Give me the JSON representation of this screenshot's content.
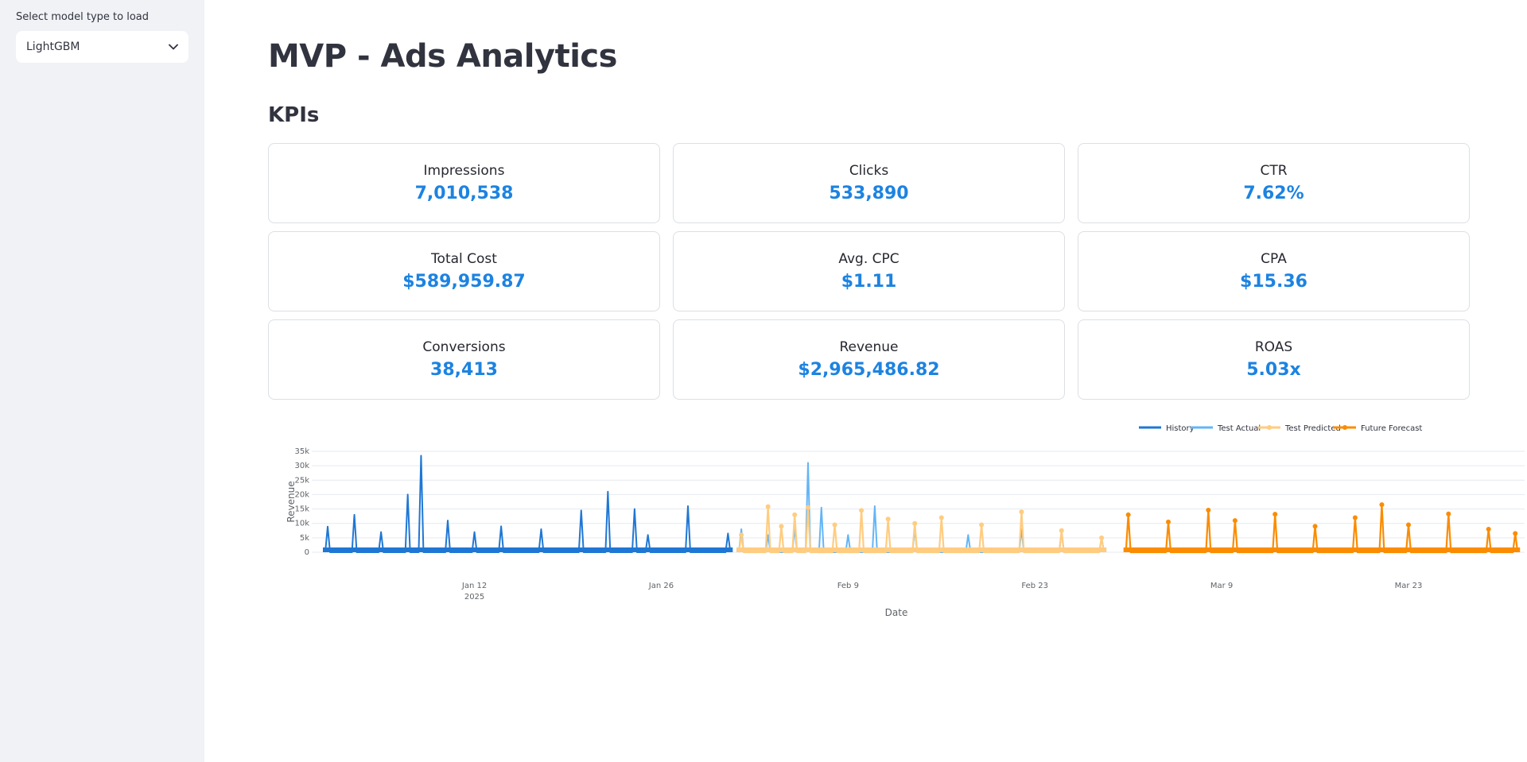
{
  "sidebar": {
    "select_label": "Select model type to load",
    "selected_model": "LightGBM"
  },
  "page": {
    "title": "MVP - Ads Analytics",
    "kpi_section_title": "KPIs"
  },
  "kpis": [
    {
      "label": "Impressions",
      "value": "7,010,538"
    },
    {
      "label": "Clicks",
      "value": "533,890"
    },
    {
      "label": "CTR",
      "value": "7.62%"
    },
    {
      "label": "Total Cost",
      "value": "$589,959.87"
    },
    {
      "label": "Avg. CPC",
      "value": "$1.11"
    },
    {
      "label": "CPA",
      "value": "$15.36"
    },
    {
      "label": "Conversions",
      "value": "38,413"
    },
    {
      "label": "Revenue",
      "value": "$2,965,486.82"
    },
    {
      "label": "ROAS",
      "value": "5.03x"
    }
  ],
  "colors": {
    "accent": "#1c83e1",
    "history": "#1f77d4",
    "test_actual": "#64b5f6",
    "test_predicted": "#ffcc80",
    "future_forecast": "#fb8c00"
  },
  "chart_data": {
    "type": "line",
    "xlabel": "Date",
    "ylabel": "Revenue",
    "ylim": [
      0,
      35000
    ],
    "y_ticks": [
      "0",
      "5k",
      "10k",
      "15k",
      "20k",
      "25k",
      "30k",
      "35k"
    ],
    "x_ticks": [
      "Jan 12",
      "Jan 26",
      "Feb 9",
      "Feb 23",
      "Mar 9",
      "Mar 23"
    ],
    "x_tick_sublabel": "2025",
    "legend_position": "top-right",
    "grid": true,
    "series": [
      {
        "name": "History",
        "x": [
          "2025-01-01",
          "2025-01-03",
          "2025-01-05",
          "2025-01-07",
          "2025-01-08",
          "2025-01-10",
          "2025-01-12",
          "2025-01-14",
          "2025-01-17",
          "2025-01-20",
          "2025-01-22",
          "2025-01-24",
          "2025-01-25",
          "2025-01-28",
          "2025-01-31"
        ],
        "values": [
          8900,
          13000,
          7000,
          20000,
          33500,
          11000,
          7000,
          9000,
          8000,
          14500,
          21000,
          15000,
          6000,
          16000,
          6500
        ]
      },
      {
        "name": "Test Actual",
        "x": [
          "2025-02-01",
          "2025-02-03",
          "2025-02-05",
          "2025-02-06",
          "2025-02-07",
          "2025-02-09",
          "2025-02-11",
          "2025-02-14",
          "2025-02-18",
          "2025-02-22",
          "2025-02-25",
          "2025-02-28"
        ],
        "values": [
          8000,
          6000,
          8500,
          31000,
          15500,
          6000,
          16000,
          8000,
          6000,
          8000,
          7000,
          5000
        ]
      },
      {
        "name": "Test Predicted",
        "x": [
          "2025-02-01",
          "2025-02-03",
          "2025-02-04",
          "2025-02-05",
          "2025-02-06",
          "2025-02-08",
          "2025-02-10",
          "2025-02-12",
          "2025-02-14",
          "2025-02-16",
          "2025-02-19",
          "2025-02-22",
          "2025-02-25",
          "2025-02-28"
        ],
        "values": [
          6000,
          15800,
          9000,
          13000,
          15500,
          9500,
          14500,
          11500,
          10000,
          12000,
          9500,
          14000,
          7500,
          5000
        ]
      },
      {
        "name": "Future Forecast",
        "x": [
          "2025-03-02",
          "2025-03-05",
          "2025-03-08",
          "2025-03-10",
          "2025-03-13",
          "2025-03-16",
          "2025-03-19",
          "2025-03-21",
          "2025-03-23",
          "2025-03-26",
          "2025-03-29",
          "2025-03-31"
        ],
        "values": [
          13000,
          10500,
          14600,
          11000,
          13200,
          9000,
          12000,
          16500,
          9500,
          13300,
          8000,
          6500
        ]
      }
    ]
  }
}
